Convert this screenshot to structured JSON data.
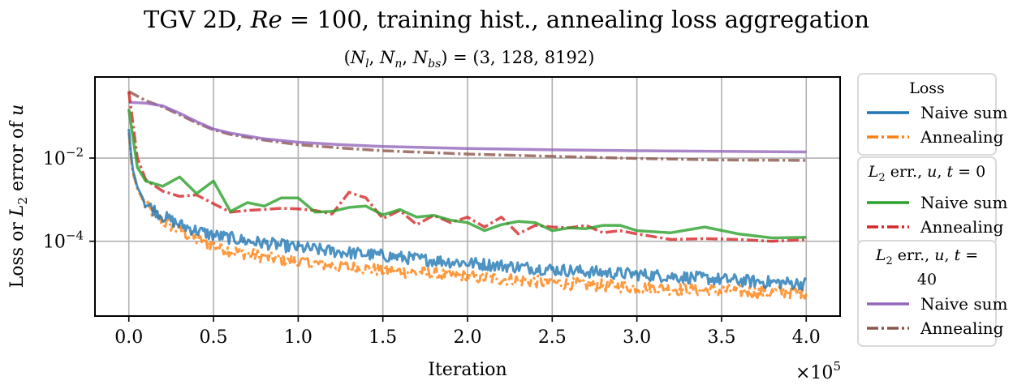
{
  "chart_data": {
    "type": "line",
    "title": "TGV 2D, Re = 100, training hist., annealing loss aggregation",
    "subtitle": "(N_l, N_n, N_bs) = (3, 128, 8192)",
    "xlabel": "Iteration",
    "ylabel": "Loss or L_2 error of u",
    "x_multiplier_label": "×10^5",
    "x_ticks": [
      "0.0",
      "0.5",
      "1.0",
      "1.5",
      "2.0",
      "2.5",
      "3.0",
      "3.5",
      "4.0"
    ],
    "y_ticks": [
      "10^-2",
      "10^-4"
    ],
    "xlim": [
      -20000,
      420000
    ],
    "y_scale": "log",
    "ylim_log10": [
      -5.8,
      -0.05
    ],
    "grid": true,
    "legend_placement": "outside right",
    "legend_groups": [
      {
        "title": "Loss",
        "entries": [
          "Naive sum",
          "Annealing"
        ]
      },
      {
        "title": "L_2 err., u, t = 0",
        "entries": [
          "Naive sum",
          "Annealing"
        ]
      },
      {
        "title": "L_2 err., u, t = 40",
        "entries": [
          "Naive sum",
          "Annealing"
        ]
      }
    ],
    "series": [
      {
        "group": "Loss",
        "name": "Naive sum",
        "color": "#1f77b4",
        "style": "solid",
        "noisy": true,
        "x": [
          0,
          2000,
          5000,
          10000,
          20000,
          30000,
          40000,
          50000,
          60000,
          70000,
          80000,
          100000,
          125000,
          150000,
          175000,
          200000,
          225000,
          250000,
          275000,
          300000,
          325000,
          350000,
          375000,
          400000
        ],
        "y": [
          0.05,
          0.006,
          0.002,
          0.0008,
          0.0004,
          0.00025,
          0.00018,
          0.00014,
          0.00012,
          0.0001,
          9e-05,
          7e-05,
          5.5e-05,
          4.5e-05,
          3.6e-05,
          3e-05,
          2.5e-05,
          2.1e-05,
          1.8e-05,
          1.6e-05,
          1.4e-05,
          1.2e-05,
          1.05e-05,
          9.5e-06
        ]
      },
      {
        "group": "Loss",
        "name": "Annealing",
        "color": "#ff7f0e",
        "style": "dashdot",
        "noisy": true,
        "x": [
          0,
          2000,
          5000,
          10000,
          20000,
          30000,
          40000,
          50000,
          60000,
          70000,
          80000,
          100000,
          125000,
          150000,
          175000,
          200000,
          225000,
          250000,
          275000,
          300000,
          325000,
          350000,
          375000,
          400000
        ],
        "y": [
          0.04,
          0.005,
          0.0018,
          0.0007,
          0.0003,
          0.00018,
          0.00011,
          8e-05,
          6e-05,
          5e-05,
          4.2e-05,
          3.2e-05,
          2.5e-05,
          2e-05,
          1.7e-05,
          1.4e-05,
          1.2e-05,
          1e-05,
          8.8e-06,
          7.8e-06,
          7e-06,
          6.5e-06,
          6e-06,
          5.9e-06
        ]
      },
      {
        "group": "L_2 err., u, t = 0",
        "name": "Naive sum",
        "color": "#2ca02c",
        "style": "solid",
        "noisy": false,
        "x": [
          0,
          5000,
          10000,
          20000,
          30000,
          40000,
          50000,
          60000,
          70000,
          80000,
          90000,
          100000,
          110000,
          120000,
          130000,
          140000,
          150000,
          160000,
          170000,
          180000,
          190000,
          200000,
          210000,
          220000,
          230000,
          240000,
          250000,
          260000,
          270000,
          280000,
          290000,
          300000,
          320000,
          340000,
          360000,
          380000,
          400000
        ],
        "y": [
          0.15,
          0.006,
          0.0028,
          0.0021,
          0.0035,
          0.0014,
          0.0028,
          0.00052,
          0.00085,
          0.0007,
          0.0011,
          0.0011,
          0.0005,
          0.00052,
          0.00065,
          0.0007,
          0.00043,
          0.00058,
          0.00038,
          0.00042,
          0.00032,
          0.00028,
          0.00018,
          0.00025,
          0.0003,
          0.00028,
          0.00018,
          0.00021,
          0.0002,
          0.00024,
          0.00024,
          0.00018,
          0.00016,
          0.00022,
          0.00015,
          0.00012,
          0.000125
        ]
      },
      {
        "group": "L_2 err., u, t = 0",
        "name": "Annealing",
        "color": "#d62728",
        "style": "dashdot",
        "noisy": false,
        "x": [
          0,
          5000,
          10000,
          20000,
          30000,
          40000,
          50000,
          60000,
          70000,
          80000,
          90000,
          100000,
          110000,
          120000,
          130000,
          140000,
          150000,
          160000,
          170000,
          180000,
          190000,
          200000,
          210000,
          220000,
          230000,
          240000,
          250000,
          260000,
          270000,
          280000,
          290000,
          300000,
          320000,
          340000,
          360000,
          380000,
          400000
        ],
        "y": [
          0.4,
          0.01,
          0.003,
          0.0016,
          0.0012,
          0.0013,
          0.0008,
          0.0005,
          0.00055,
          0.00058,
          0.00062,
          0.0006,
          0.00055,
          0.00045,
          0.0015,
          0.0011,
          0.00035,
          0.00055,
          0.00025,
          0.00042,
          0.00028,
          0.00038,
          0.00022,
          0.00038,
          0.00015,
          0.00024,
          0.00022,
          0.00021,
          0.00024,
          0.00016,
          0.00018,
          0.00015,
          0.00011,
          0.000115,
          0.00011,
          0.0001,
          0.00011
        ]
      },
      {
        "group": "L_2 err., u, t = 40",
        "name": "Naive sum",
        "color": "#9467bd",
        "style": "solid",
        "noisy": false,
        "x": [
          0,
          10000,
          20000,
          30000,
          40000,
          50000,
          60000,
          80000,
          100000,
          125000,
          150000,
          200000,
          250000,
          300000,
          350000,
          400000
        ],
        "y": [
          0.22,
          0.21,
          0.18,
          0.12,
          0.075,
          0.05,
          0.04,
          0.029,
          0.024,
          0.021,
          0.019,
          0.017,
          0.0158,
          0.015,
          0.0145,
          0.014
        ]
      },
      {
        "group": "L_2 err., u, t = 40",
        "name": "Annealing",
        "color": "#8c564b",
        "style": "dashdot",
        "noisy": false,
        "x": [
          0,
          10000,
          20000,
          30000,
          40000,
          50000,
          60000,
          80000,
          100000,
          125000,
          150000,
          200000,
          250000,
          300000,
          350000,
          400000
        ],
        "y": [
          0.4,
          0.24,
          0.17,
          0.11,
          0.07,
          0.048,
          0.037,
          0.027,
          0.021,
          0.0175,
          0.015,
          0.0125,
          0.011,
          0.0098,
          0.009,
          0.0088
        ]
      }
    ]
  }
}
